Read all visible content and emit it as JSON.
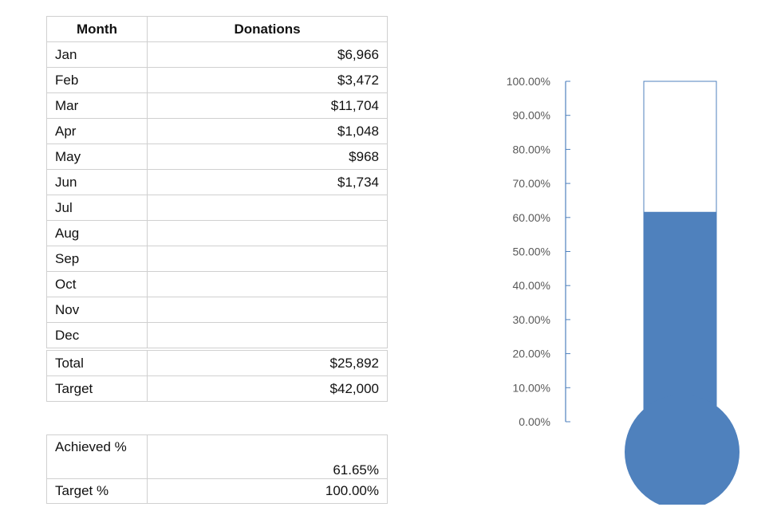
{
  "table": {
    "headers": [
      "Month",
      "Donations"
    ],
    "rows": [
      {
        "month": "Jan",
        "donation": "$6,966"
      },
      {
        "month": "Feb",
        "donation": "$3,472"
      },
      {
        "month": "Mar",
        "donation": "$11,704"
      },
      {
        "month": "Apr",
        "donation": "$1,048"
      },
      {
        "month": "May",
        "donation": "$968"
      },
      {
        "month": "Jun",
        "donation": "$1,734"
      },
      {
        "month": "Jul",
        "donation": ""
      },
      {
        "month": "Aug",
        "donation": ""
      },
      {
        "month": "Sep",
        "donation": ""
      },
      {
        "month": "Oct",
        "donation": ""
      },
      {
        "month": "Nov",
        "donation": ""
      },
      {
        "month": "Dec",
        "donation": ""
      }
    ],
    "total_label": "Total",
    "total_value": "$25,892",
    "target_label": "Target",
    "target_value": "$42,000"
  },
  "summary": {
    "achieved_label": "Achieved %",
    "achieved_value": "61.65%",
    "target_label": "Target %",
    "target_value": "100.00%"
  },
  "chart_data": {
    "type": "bar",
    "subtype": "thermometer",
    "categories": [
      ""
    ],
    "series": [
      {
        "values": [
          61.65
        ]
      },
      {
        "values": [
          100
        ]
      }
    ],
    "ylim": [
      0,
      100
    ],
    "yticks": [
      "0.00%",
      "10.00%",
      "20.00%",
      "30.00%",
      "40.00%",
      "50.00%",
      "60.00%",
      "70.00%",
      "80.00%",
      "90.00%",
      "100.00%"
    ],
    "grid": false,
    "fill_color": "#4F81BD"
  }
}
